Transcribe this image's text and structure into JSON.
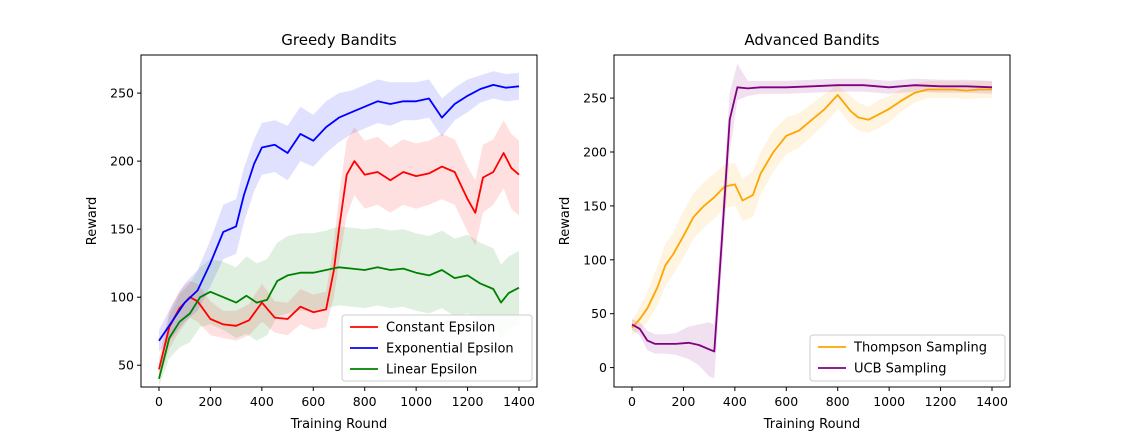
{
  "chart_data": [
    {
      "type": "line",
      "title": "Greedy Bandits",
      "xlabel": "Training Round",
      "ylabel": "Reward",
      "xlim": [
        -70,
        1470
      ],
      "ylim": [
        34,
        278
      ],
      "xticks": [
        0,
        200,
        400,
        600,
        800,
        1000,
        1200,
        1400
      ],
      "yticks": [
        50,
        100,
        150,
        200,
        250
      ],
      "legend_position": "lower-right",
      "grid": false,
      "series": [
        {
          "name": "Constant Epsilon",
          "color": "#ff0000",
          "band_color": "#ffcccc",
          "x": [
            0,
            40,
            80,
            120,
            150,
            200,
            250,
            300,
            350,
            400,
            450,
            500,
            550,
            600,
            650,
            680,
            700,
            730,
            760,
            800,
            850,
            900,
            950,
            1000,
            1050,
            1100,
            1150,
            1200,
            1230,
            1260,
            1300,
            1340,
            1370,
            1400
          ],
          "y": [
            47,
            78,
            92,
            100,
            97,
            84,
            80,
            79,
            83,
            96,
            85,
            84,
            93,
            89,
            91,
            120,
            150,
            190,
            200,
            190,
            192,
            186,
            192,
            189,
            191,
            196,
            192,
            172,
            162,
            188,
            192,
            206,
            195,
            190
          ],
          "lower": [
            40,
            62,
            75,
            85,
            82,
            72,
            70,
            68,
            72,
            82,
            74,
            72,
            80,
            76,
            78,
            100,
            125,
            160,
            175,
            165,
            168,
            162,
            168,
            165,
            168,
            172,
            168,
            148,
            138,
            162,
            168,
            180,
            165,
            160
          ],
          "upper": [
            55,
            90,
            105,
            112,
            110,
            97,
            90,
            90,
            95,
            110,
            97,
            96,
            106,
            102,
            104,
            140,
            175,
            215,
            225,
            215,
            218,
            210,
            216,
            213,
            215,
            220,
            216,
            196,
            186,
            212,
            216,
            230,
            220,
            215
          ]
        },
        {
          "name": "Exponential Epsilon",
          "color": "#0000ff",
          "band_color": "#ccccff",
          "x": [
            0,
            50,
            100,
            150,
            200,
            250,
            300,
            330,
            370,
            400,
            450,
            500,
            550,
            600,
            650,
            700,
            750,
            800,
            850,
            900,
            950,
            1000,
            1050,
            1100,
            1150,
            1200,
            1250,
            1300,
            1350,
            1400
          ],
          "y": [
            68,
            82,
            96,
            105,
            125,
            148,
            152,
            175,
            198,
            210,
            212,
            206,
            220,
            215,
            225,
            232,
            236,
            240,
            244,
            242,
            244,
            244,
            246,
            232,
            242,
            248,
            253,
            256,
            254,
            255
          ],
          "lower": [
            60,
            70,
            82,
            90,
            108,
            128,
            132,
            155,
            178,
            190,
            192,
            186,
            200,
            196,
            206,
            214,
            220,
            224,
            228,
            226,
            230,
            230,
            232,
            218,
            230,
            236,
            243,
            246,
            244,
            245
          ],
          "upper": [
            76,
            94,
            110,
            120,
            142,
            168,
            172,
            195,
            216,
            228,
            230,
            226,
            240,
            234,
            244,
            250,
            252,
            256,
            260,
            258,
            258,
            258,
            260,
            246,
            254,
            260,
            263,
            266,
            264,
            265
          ]
        },
        {
          "name": "Linear Epsilon",
          "color": "#008000",
          "band_color": "#c8e6c8",
          "x": [
            0,
            40,
            80,
            120,
            160,
            200,
            250,
            300,
            340,
            380,
            420,
            460,
            500,
            550,
            600,
            650,
            700,
            750,
            800,
            850,
            900,
            950,
            1000,
            1050,
            1100,
            1150,
            1200,
            1250,
            1300,
            1330,
            1360,
            1400
          ],
          "y": [
            40,
            70,
            82,
            88,
            100,
            104,
            100,
            96,
            101,
            96,
            98,
            112,
            116,
            118,
            118,
            120,
            122,
            121,
            120,
            122,
            120,
            121,
            118,
            116,
            120,
            114,
            116,
            110,
            106,
            96,
            103,
            107
          ],
          "lower": [
            35,
            55,
            63,
            67,
            78,
            80,
            76,
            70,
            73,
            68,
            72,
            86,
            88,
            90,
            90,
            92,
            94,
            93,
            92,
            94,
            92,
            93,
            90,
            88,
            92,
            86,
            88,
            82,
            78,
            70,
            76,
            80
          ],
          "upper": [
            48,
            86,
            102,
            110,
            122,
            128,
            126,
            122,
            130,
            125,
            128,
            140,
            145,
            147,
            147,
            149,
            152,
            151,
            150,
            151,
            149,
            150,
            147,
            145,
            149,
            143,
            146,
            140,
            136,
            124,
            130,
            134
          ]
        }
      ]
    },
    {
      "type": "line",
      "title": "Advanced Bandits",
      "xlabel": "Training Round",
      "ylabel": "Reward",
      "xlim": [
        -70,
        1470
      ],
      "ylim": [
        -18,
        290
      ],
      "xticks": [
        0,
        200,
        400,
        600,
        800,
        1000,
        1200,
        1400
      ],
      "yticks": [
        0,
        50,
        100,
        150,
        200,
        250
      ],
      "legend_position": "lower-right",
      "grid": false,
      "series": [
        {
          "name": "Thompson Sampling",
          "color": "#ffa500",
          "band_color": "#ffe4c0",
          "x": [
            0,
            30,
            60,
            100,
            130,
            160,
            200,
            240,
            280,
            320,
            360,
            400,
            430,
            470,
            500,
            550,
            600,
            650,
            700,
            750,
            800,
            850,
            880,
            920,
            960,
            1000,
            1050,
            1100,
            1150,
            1200,
            1250,
            1300,
            1350,
            1400
          ],
          "y": [
            37,
            45,
            55,
            75,
            95,
            105,
            122,
            140,
            150,
            158,
            168,
            170,
            155,
            160,
            180,
            200,
            215,
            220,
            230,
            240,
            253,
            238,
            232,
            230,
            235,
            240,
            248,
            255,
            258,
            258,
            258,
            257,
            258,
            258
          ],
          "lower": [
            30,
            35,
            42,
            58,
            76,
            86,
            102,
            120,
            130,
            138,
            148,
            150,
            136,
            140,
            160,
            182,
            198,
            204,
            215,
            226,
            240,
            226,
            220,
            218,
            222,
            228,
            238,
            246,
            250,
            250,
            250,
            249,
            250,
            250
          ],
          "upper": [
            44,
            56,
            70,
            95,
            115,
            125,
            145,
            162,
            172,
            180,
            188,
            190,
            175,
            182,
            200,
            220,
            232,
            236,
            245,
            254,
            262,
            252,
            246,
            242,
            248,
            252,
            258,
            263,
            266,
            266,
            266,
            265,
            266,
            266
          ]
        },
        {
          "name": "UCB Sampling",
          "color": "#800080",
          "band_color": "#e6c8e6",
          "x": [
            0,
            30,
            60,
            90,
            130,
            170,
            220,
            260,
            300,
            320,
            350,
            380,
            410,
            450,
            500,
            600,
            700,
            800,
            900,
            1000,
            1100,
            1200,
            1300,
            1400
          ],
          "y": [
            40,
            36,
            25,
            22,
            22,
            22,
            23,
            21,
            17,
            15,
            120,
            230,
            260,
            259,
            260,
            260,
            261,
            262,
            262,
            260,
            262,
            261,
            261,
            260
          ],
          "lower": [
            35,
            30,
            16,
            13,
            13,
            12,
            8,
            2,
            -8,
            -10,
            95,
            200,
            248,
            252,
            254,
            254,
            255,
            256,
            256,
            254,
            256,
            255,
            255,
            254
          ],
          "upper": [
            45,
            42,
            34,
            31,
            31,
            32,
            38,
            40,
            42,
            40,
            145,
            255,
            282,
            266,
            266,
            266,
            267,
            268,
            268,
            266,
            268,
            267,
            267,
            266
          ]
        }
      ]
    }
  ]
}
